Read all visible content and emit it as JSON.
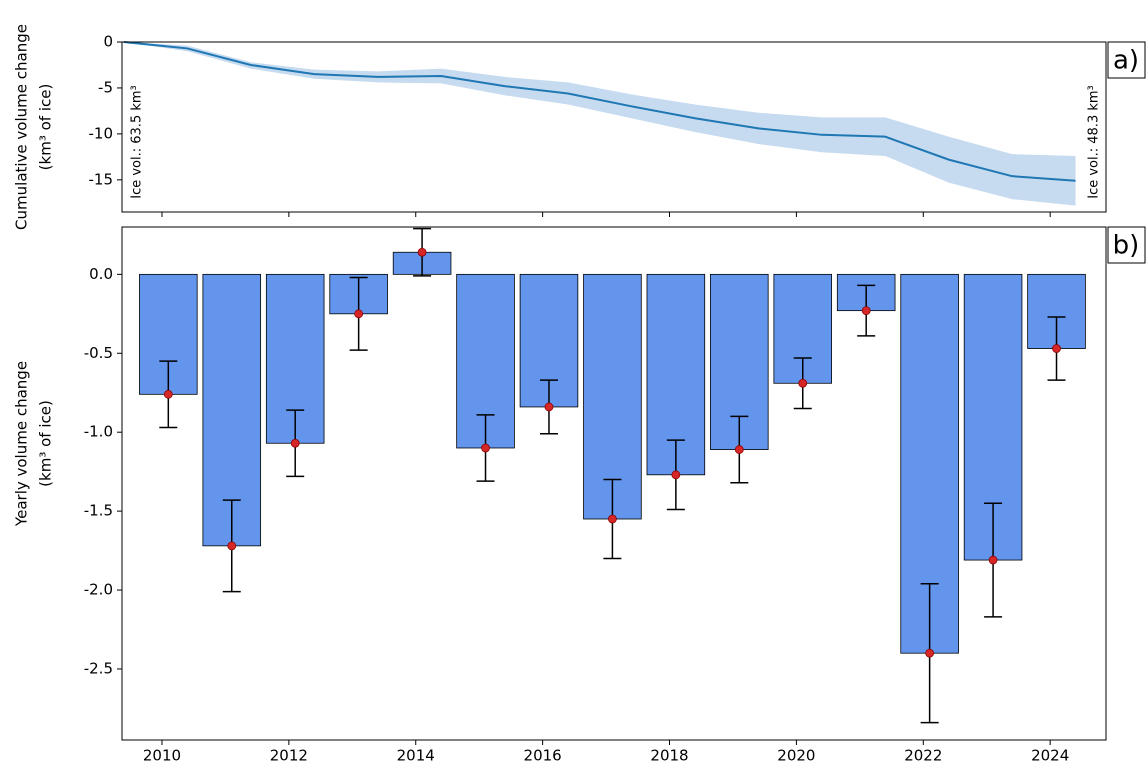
{
  "chart_data": [
    {
      "type": "line",
      "y_label": [
        "Cumulative volume change",
        "(km³ of ice)"
      ],
      "annotations": [
        "Ice vol.: 63.5 km³",
        "Ice vol.: 48.3 km³"
      ],
      "panel_label": "a)",
      "x": [
        2009.4,
        2010.4,
        2011.4,
        2012.4,
        2013.4,
        2014.4,
        2015.4,
        2016.4,
        2017.4,
        2018.4,
        2019.4,
        2020.4,
        2021.4,
        2022.4,
        2023.4,
        2024.4
      ],
      "values": [
        0,
        -0.7,
        -2.5,
        -3.5,
        -3.8,
        -3.7,
        -4.8,
        -5.6,
        -7.0,
        -8.3,
        -9.4,
        -10.1,
        -10.3,
        -12.8,
        -14.6,
        -15.1
      ],
      "band_upper": [
        0,
        -0.4,
        -2.2,
        -3.0,
        -3.2,
        -2.9,
        -3.8,
        -4.4,
        -5.7,
        -6.8,
        -7.7,
        -8.2,
        -8.2,
        -10.3,
        -12.2,
        -12.4
      ],
      "band_lower": [
        0,
        -1.0,
        -2.9,
        -4.0,
        -4.4,
        -4.5,
        -5.8,
        -6.8,
        -8.3,
        -9.8,
        -11.1,
        -12.0,
        -12.4,
        -15.3,
        -17.1,
        -17.8
      ],
      "color": "#1f77b4",
      "band_color": "#c6dbef",
      "xlim": [
        2009.37,
        2024.88
      ],
      "xticks": [
        2010,
        2012,
        2014,
        2016,
        2018,
        2020,
        2022,
        2024
      ],
      "ylim": [
        -18.5,
        0
      ],
      "yticks": [
        0,
        -5,
        -10,
        -15
      ]
    },
    {
      "type": "bar",
      "y_label": [
        "Yearly volume change",
        "(km³ of ice)"
      ],
      "panel_label": "b)",
      "x": [
        2010.1,
        2011.1,
        2012.1,
        2013.1,
        2014.1,
        2015.1,
        2016.1,
        2017.1,
        2018.1,
        2019.1,
        2020.1,
        2021.1,
        2022.1,
        2023.1,
        2024.1
      ],
      "values": [
        -0.76,
        -1.72,
        -1.07,
        -0.25,
        0.14,
        -1.1,
        -0.84,
        -1.55,
        -1.27,
        -1.11,
        -0.69,
        -0.23,
        -2.4,
        -1.81,
        -0.47
      ],
      "errors": [
        0.21,
        0.29,
        0.21,
        0.23,
        0.15,
        0.21,
        0.17,
        0.25,
        0.22,
        0.21,
        0.16,
        0.16,
        0.44,
        0.36,
        0.2
      ],
      "bar_width": 0.91,
      "color": "#6495ed",
      "marker_color": "#d62728",
      "xlim": [
        2009.37,
        2024.88
      ],
      "xticks": [
        2010,
        2012,
        2014,
        2016,
        2018,
        2020,
        2022,
        2024
      ],
      "ylim": [
        -2.95,
        0.3
      ],
      "yticks": [
        {
          "value": 0,
          "label": "0.0"
        },
        -0.5,
        {
          "value": -1,
          "label": "-1.0"
        },
        -1.5,
        {
          "value": -2,
          "label": "-2.0"
        },
        -2.5
      ]
    }
  ]
}
